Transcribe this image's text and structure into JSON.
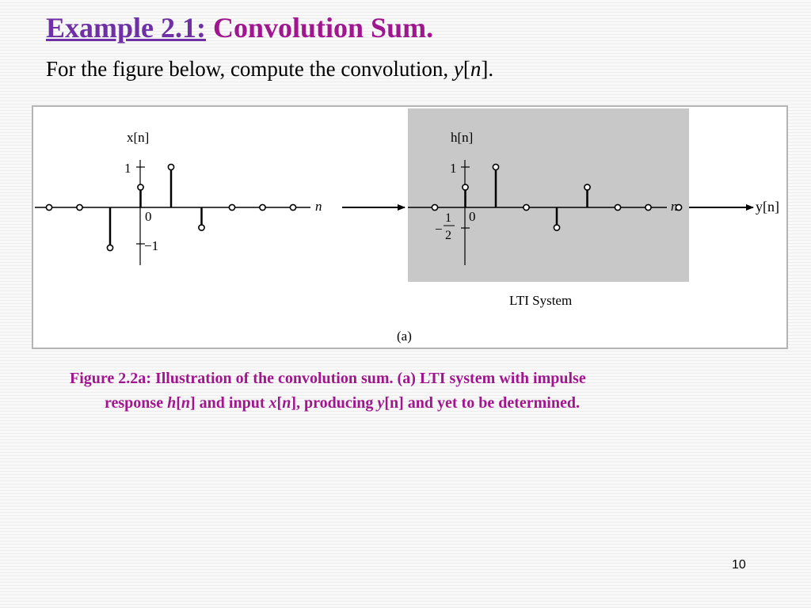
{
  "title": {
    "prefix": "Example 2.1:",
    "main": "Convolution Sum."
  },
  "subtitle": {
    "text": "For the figure below, compute the convolution, ",
    "var": "y",
    "open": "[",
    "index": "n",
    "close": "]."
  },
  "figure": {
    "x_label": "x[n]",
    "h_label": "h[n]",
    "n_label": "n",
    "y_label": "y[n]",
    "system_label": "LTI System",
    "panel_label": "(a)",
    "x_ticks": {
      "one": "1",
      "zero": "0",
      "minus_one": "−1"
    },
    "h_ticks": {
      "one": "1",
      "zero": "0",
      "minus_sign": "−",
      "half_num": "1",
      "half_den": "2"
    }
  },
  "chart_data": [
    {
      "type": "stem",
      "title": "x[n]",
      "xlabel": "n",
      "ylabel": "",
      "x": [
        -3,
        -2,
        -1,
        0,
        1,
        2,
        3,
        4,
        5
      ],
      "values": [
        0,
        0,
        -1,
        0.5,
        1,
        -0.5,
        0,
        0,
        0
      ],
      "ylim": [
        -1,
        1
      ]
    },
    {
      "type": "stem",
      "title": "h[n]",
      "xlabel": "n",
      "ylabel": "",
      "x": [
        -1,
        0,
        1,
        2,
        3,
        4,
        5,
        6,
        7
      ],
      "values": [
        0,
        0.5,
        1,
        0,
        -0.5,
        0.5,
        0,
        0,
        0
      ],
      "ylim": [
        -0.5,
        1
      ]
    }
  ],
  "caption": {
    "line1": "Figure 2.2a: Illustration of  the convolution sum. (a) LTI system with impulse",
    "resp": "response ",
    "h": "h",
    "br1": "[",
    "n1": "n",
    "br2": "] and input ",
    "x": "x",
    "br3": "[",
    "n2": "n",
    "br4": "], producing ",
    "y": "y",
    "rest": "[n]  and yet to be determined."
  },
  "slide_number": "10"
}
